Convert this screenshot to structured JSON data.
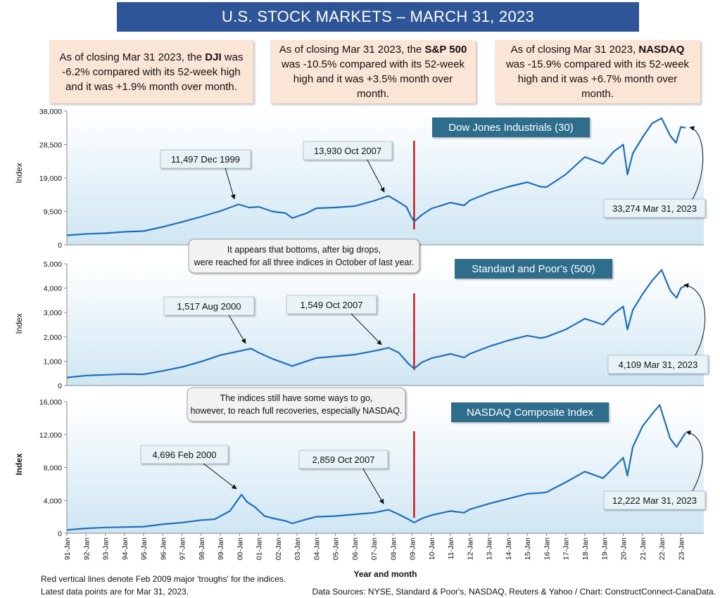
{
  "title": "U.S. STOCK MARKETS – MARCH 31, 2023",
  "summaries": [
    {
      "pre": "As of closing Mar 31 2023, the ",
      "bold": "DJI",
      "post": " was -6.2% compared with its 52-week high and it was +1.9% month over month."
    },
    {
      "pre": "As of closing Mar 31 2023, the ",
      "bold": "S&P 500",
      "post": " was -10.5% compared with its 52-week high and it was +3.5% month over month."
    },
    {
      "pre": "As of closing Mar 31 2023, ",
      "bold": "NASDAQ",
      "post": " was -15.9% compared with its 52-week high and it was +6.7% month over month."
    }
  ],
  "notes": [
    "It appears that bottoms, after big drops, were reached for all three indices in October of last year.",
    "The indices still have some ways to go, however, to reach full recoveries, especially NASDAQ."
  ],
  "footer": {
    "left1": "Red vertical lines denote Feb 2009 major 'troughs' for the indices.",
    "left2": "Latest data points are for Mar 31, 2023.",
    "right": "Data Sources:  NYSE, Standard & Poor's, NASDAQ, Reuters & Yahoo / Chart: ConstructConnect-CanaData."
  },
  "colors": {
    "line": "#1f6fb8",
    "trough": "#cc0000",
    "title_bg": "#2e5597",
    "label_bg": "#2e6e8c",
    "summary_bg": "#fbe5d6",
    "plot_top": "#ffffff",
    "plot_bottom": "#cfe6f3",
    "annot_bg": "#e8f3f8"
  },
  "chart_data": [
    {
      "type": "line",
      "title": "Dow Jones Industrials (30)",
      "ylabel": "Index",
      "ylim": [
        0,
        38000
      ],
      "yticks": [
        0,
        9500,
        19000,
        28500,
        38000
      ],
      "ytick_labels": [
        "0",
        "9,500",
        "19,000",
        "28,500",
        "38,000"
      ],
      "trough_x": 2009.1,
      "x": [
        1991.0,
        1992.0,
        1993.0,
        1994.0,
        1995.0,
        1996.0,
        1997.0,
        1998.0,
        1999.0,
        1999.95,
        2000.5,
        2001.0,
        2001.7,
        2002.4,
        2002.75,
        2003.5,
        2004.0,
        2005.0,
        2006.0,
        2007.0,
        2007.77,
        2008.2,
        2008.7,
        2008.9,
        2009.1,
        2009.5,
        2010.0,
        2011.0,
        2011.7,
        2012.0,
        2013.0,
        2014.0,
        2015.0,
        2015.7,
        2016.0,
        2017.0,
        2018.0,
        2018.95,
        2019.5,
        2020.0,
        2020.22,
        2020.5,
        2021.0,
        2021.5,
        2022.0,
        2022.45,
        2022.75,
        2023.0,
        2023.25
      ],
      "y": [
        2700,
        3100,
        3300,
        3700,
        3900,
        5100,
        6500,
        8000,
        9600,
        11497,
        10600,
        10800,
        9500,
        9000,
        7600,
        9000,
        10400,
        10600,
        11000,
        12500,
        13930,
        12500,
        10800,
        8500,
        6600,
        8500,
        10300,
        12000,
        11200,
        12600,
        14800,
        16500,
        17800,
        16500,
        16400,
        20000,
        25000,
        23000,
        26500,
        28500,
        20000,
        26000,
        30500,
        34500,
        36000,
        31000,
        29000,
        33500,
        33274
      ],
      "annotations": [
        {
          "text": "11,497 Dec 1999",
          "x": 1999.95,
          "y": 11497
        },
        {
          "text": "13,930 Oct 2007",
          "x": 2007.77,
          "y": 13930
        },
        {
          "text": "33,274 Mar 31, 2023",
          "x": 2023.25,
          "y": 33274
        }
      ]
    },
    {
      "type": "line",
      "title": "Standard and Poor's (500)",
      "ylabel": "Index",
      "ylim": [
        0,
        5000
      ],
      "yticks": [
        0,
        1000,
        2000,
        3000,
        4000,
        5000
      ],
      "ytick_labels": [
        "0",
        "1,000",
        "2,000",
        "3,000",
        "4,000",
        "5,000"
      ],
      "trough_x": 2009.1,
      "x": [
        1991.0,
        1992.0,
        1993.0,
        1994.0,
        1995.0,
        1996.0,
        1997.0,
        1998.0,
        1999.0,
        2000.6,
        2001.0,
        2001.7,
        2002.75,
        2003.5,
        2004.0,
        2005.0,
        2006.0,
        2007.0,
        2007.77,
        2008.3,
        2008.8,
        2009.1,
        2009.5,
        2010.0,
        2011.0,
        2011.7,
        2012.0,
        2013.0,
        2014.0,
        2015.0,
        2015.7,
        2016.0,
        2017.0,
        2018.0,
        2018.95,
        2019.5,
        2020.0,
        2020.22,
        2020.5,
        2021.0,
        2021.5,
        2022.0,
        2022.45,
        2022.78,
        2023.0,
        2023.25
      ],
      "y": [
        330,
        410,
        440,
        470,
        460,
        600,
        760,
        980,
        1250,
        1517,
        1350,
        1100,
        800,
        1000,
        1130,
        1200,
        1270,
        1420,
        1549,
        1350,
        900,
        700,
        950,
        1120,
        1300,
        1150,
        1300,
        1600,
        1850,
        2050,
        1950,
        2000,
        2300,
        2750,
        2500,
        2950,
        3250,
        2300,
        3100,
        3750,
        4300,
        4750,
        3900,
        3600,
        4000,
        4109
      ],
      "annotations": [
        {
          "text": "1,517 Aug 2000",
          "x": 2000.6,
          "y": 1517
        },
        {
          "text": "1,549 Oct 2007",
          "x": 2007.77,
          "y": 1549
        },
        {
          "text": "4,109 Mar 31, 2023",
          "x": 2023.25,
          "y": 4109
        }
      ]
    },
    {
      "type": "line",
      "title": "NASDAQ Composite Index",
      "ylabel": "Index",
      "xlabel": "Year and month",
      "ylim": [
        0,
        16000
      ],
      "yticks": [
        0,
        4000,
        8000,
        12000,
        16000
      ],
      "ytick_labels": [
        "0",
        "4,000",
        "8,000",
        "12,000",
        "16,000"
      ],
      "trough_x": 2009.1,
      "x": [
        1991.0,
        1992.0,
        1993.0,
        1994.0,
        1995.0,
        1996.0,
        1997.0,
        1998.0,
        1998.7,
        1999.5,
        2000.1,
        2000.4,
        2000.8,
        2001.3,
        2001.8,
        2002.4,
        2002.75,
        2003.5,
        2004.0,
        2005.0,
        2006.0,
        2007.0,
        2007.77,
        2008.3,
        2008.8,
        2009.1,
        2009.5,
        2010.0,
        2011.0,
        2011.7,
        2012.0,
        2013.0,
        2014.0,
        2015.0,
        2015.7,
        2016.0,
        2017.0,
        2018.0,
        2018.95,
        2019.5,
        2020.0,
        2020.22,
        2020.5,
        2021.0,
        2021.5,
        2021.9,
        2022.45,
        2022.78,
        2023.0,
        2023.25
      ],
      "y": [
        400,
        600,
        700,
        750,
        800,
        1100,
        1300,
        1600,
        1700,
        2700,
        4696,
        3800,
        3200,
        2100,
        1800,
        1500,
        1200,
        1700,
        2000,
        2100,
        2300,
        2500,
        2859,
        2300,
        1700,
        1300,
        1800,
        2200,
        2700,
        2500,
        2900,
        3600,
        4200,
        4800,
        4900,
        5000,
        6200,
        7500,
        6700,
        8000,
        9200,
        7000,
        10500,
        13000,
        14500,
        15600,
        11500,
        10500,
        11300,
        12222
      ],
      "annotations": [
        {
          "text": "4,696 Feb 2000",
          "x": 2000.1,
          "y": 4696
        },
        {
          "text": "2,859 Oct 2007",
          "x": 2007.77,
          "y": 2859
        },
        {
          "text": "12,222 Mar 31, 2023",
          "x": 2023.25,
          "y": 12222
        }
      ]
    }
  ],
  "xtick_labels": [
    "91-Jan",
    "92-Jan",
    "93-Jan",
    "94-Jan",
    "95-Jan",
    "96-Jan",
    "97-Jan",
    "98-Jan",
    "99-Jan",
    "00-Jan",
    "01-Jan",
    "02-Jan",
    "03-Jan",
    "04-Jan",
    "05-Jan",
    "06-Jan",
    "07-Jan",
    "08-Jan",
    "09-Jan",
    "10-Jan",
    "11-Jan",
    "12-Jan",
    "13-Jan",
    "14-Jan",
    "15-Jan",
    "16-Jan",
    "17-Jan",
    "18-Jan",
    "19-Jan",
    "20-Jan",
    "21-Jan",
    "22-Jan",
    "23-Jan"
  ],
  "xtick_years": [
    1991,
    1992,
    1993,
    1994,
    1995,
    1996,
    1997,
    1998,
    1999,
    2000,
    2001,
    2002,
    2003,
    2004,
    2005,
    2006,
    2007,
    2008,
    2009,
    2010,
    2011,
    2012,
    2013,
    2014,
    2015,
    2016,
    2017,
    2018,
    2019,
    2020,
    2021,
    2022,
    2023
  ]
}
